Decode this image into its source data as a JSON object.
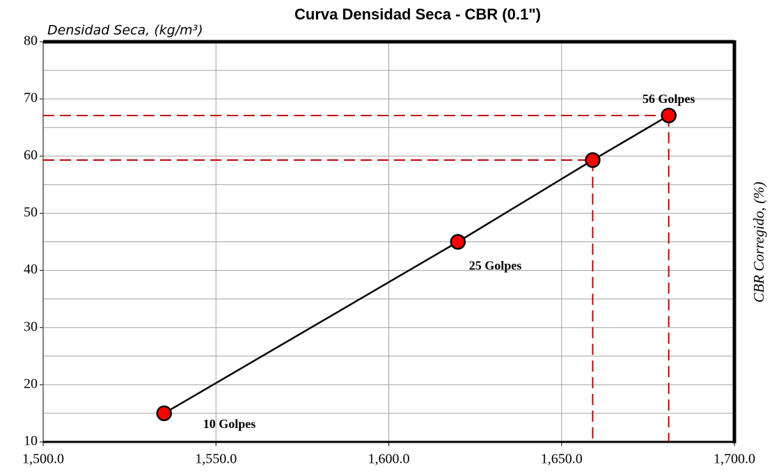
{
  "chart_data": {
    "type": "line",
    "title": "Curva Densidad Seca - CBR (0.1\")",
    "x_label": "Densidad Seca, (kg/m³)",
    "y_label": "CBR Corregido, (%)",
    "x": [
      1535,
      1620,
      1659,
      1681
    ],
    "series": [
      {
        "color": "#ff0000",
        "values": [
          15,
          45,
          59.3,
          67.1
        ]
      }
    ],
    "point_labels": [
      "10 Golpes",
      "25 Golpes",
      "56 Golpes",
      "56 Golpes"
    ],
    "xlim": [
      1500,
      1700
    ],
    "xticks": [
      {
        "value": 1500,
        "label": "1,500.0"
      },
      {
        "value": 1550,
        "label": "1,550.0"
      },
      {
        "value": 1600,
        "label": "1,600.0"
      },
      {
        "value": 1650,
        "label": "1,650.0"
      },
      {
        "value": 1700,
        "label": "1,700.0"
      }
    ],
    "ylim": [
      10,
      80
    ],
    "yticks": [
      10,
      20,
      30,
      40,
      50,
      60,
      70,
      80
    ],
    "grid": true
  }
}
